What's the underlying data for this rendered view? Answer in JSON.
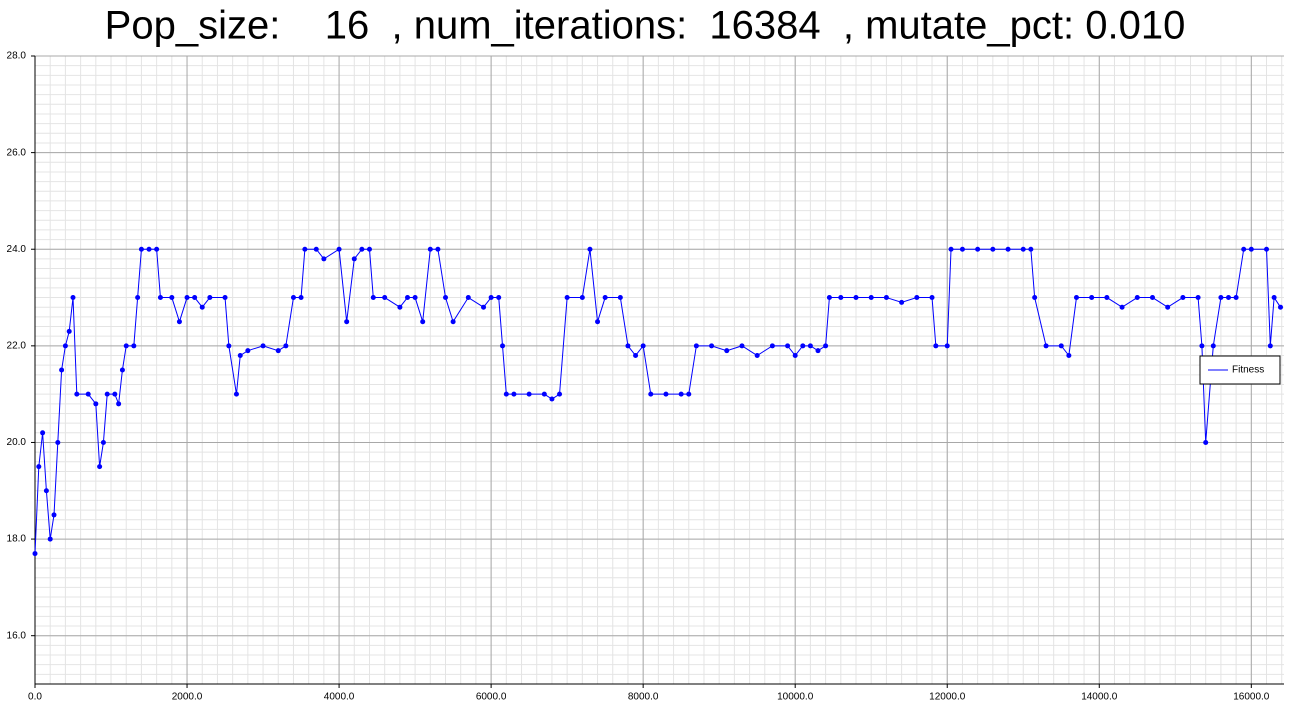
{
  "chart_data": {
    "type": "line",
    "title": "Pop_size:    16  , num_iterations:  16384  , mutate_pct: 0.010",
    "xlim": [
      0,
      16430
    ],
    "ylim": [
      15,
      28
    ],
    "xticks": [
      {
        "value": 0,
        "label": "0.0"
      },
      {
        "value": 2000,
        "label": "2000.0"
      },
      {
        "value": 4000,
        "label": "4000.0"
      },
      {
        "value": 6000,
        "label": "6000.0"
      },
      {
        "value": 8000,
        "label": "8000.0"
      },
      {
        "value": 10000,
        "label": "10000.0"
      },
      {
        "value": 12000,
        "label": "12000.0"
      },
      {
        "value": 14000,
        "label": "14000.0"
      },
      {
        "value": 16000,
        "label": "16000.0"
      }
    ],
    "yticks": [
      {
        "value": 16,
        "label": "16.0"
      },
      {
        "value": 18,
        "label": "18.0"
      },
      {
        "value": 20,
        "label": "20.0"
      },
      {
        "value": 22,
        "label": "22.0"
      },
      {
        "value": 24,
        "label": "24.0"
      },
      {
        "value": 26,
        "label": "26.0"
      },
      {
        "value": 28,
        "label": "28.0"
      }
    ],
    "grid": true,
    "minor_divisions": 10,
    "legend": "right",
    "series": [
      {
        "name": "Fitness",
        "color": "#0000ff",
        "x": [
          0,
          50,
          100,
          150,
          200,
          250,
          300,
          350,
          400,
          450,
          500,
          550,
          700,
          800,
          850,
          900,
          950,
          1050,
          1100,
          1150,
          1200,
          1300,
          1350,
          1400,
          1500,
          1600,
          1650,
          1800,
          1900,
          2000,
          2100,
          2200,
          2300,
          2500,
          2550,
          2650,
          2700,
          2800,
          3000,
          3200,
          3300,
          3400,
          3500,
          3550,
          3700,
          3800,
          4000,
          4100,
          4200,
          4300,
          4400,
          4450,
          4600,
          4800,
          4900,
          5000,
          5100,
          5200,
          5300,
          5400,
          5500,
          5700,
          5900,
          6000,
          6100,
          6150,
          6200,
          6300,
          6500,
          6700,
          6800,
          6900,
          7000,
          7200,
          7300,
          7400,
          7500,
          7700,
          7800,
          7900,
          8000,
          8100,
          8300,
          8500,
          8600,
          8700,
          8900,
          9100,
          9300,
          9500,
          9700,
          9900,
          10000,
          10100,
          10200,
          10300,
          10400,
          10450,
          10600,
          10800,
          11000,
          11200,
          11400,
          11600,
          11800,
          11850,
          12000,
          12050,
          12200,
          12400,
          12600,
          12800,
          13000,
          13100,
          13150,
          13300,
          13500,
          13600,
          13700,
          13900,
          14100,
          14300,
          14500,
          14700,
          14900,
          15100,
          15300,
          15350,
          15400,
          15500,
          15600,
          15700,
          15800,
          15900,
          16000,
          16200,
          16250,
          16300,
          16384
        ],
        "values": [
          17.7,
          19.5,
          20.2,
          19,
          18,
          18.5,
          20,
          21.5,
          22,
          22.3,
          23,
          21,
          21,
          20.8,
          19.5,
          20,
          21,
          21,
          20.8,
          21.5,
          22,
          22,
          23,
          24,
          24,
          24,
          23,
          23,
          22.5,
          23,
          23,
          22.8,
          23,
          23,
          22,
          21,
          21.8,
          21.9,
          22,
          21.9,
          22,
          23,
          23,
          24,
          24,
          23.8,
          24,
          22.5,
          23.8,
          24,
          24,
          23,
          23,
          22.8,
          23,
          23,
          22.5,
          24,
          24,
          23,
          22.5,
          23,
          22.8,
          23,
          23,
          22,
          21,
          21,
          21,
          21,
          20.9,
          21,
          23,
          23,
          24,
          22.5,
          23,
          23,
          22,
          21.8,
          22,
          21,
          21,
          21,
          21,
          22,
          22,
          21.9,
          22,
          21.8,
          22,
          22,
          21.8,
          22,
          22,
          21.9,
          22,
          23,
          23,
          23,
          23,
          23,
          22.9,
          23,
          23,
          22,
          22,
          24,
          24,
          24,
          24,
          24,
          24,
          24,
          23,
          22,
          22,
          21.8,
          23,
          23,
          23,
          22.8,
          23,
          23,
          22.8,
          23,
          23,
          22,
          20,
          22,
          23,
          23,
          23,
          24,
          24,
          24,
          22,
          23,
          22.8
        ]
      }
    ]
  }
}
